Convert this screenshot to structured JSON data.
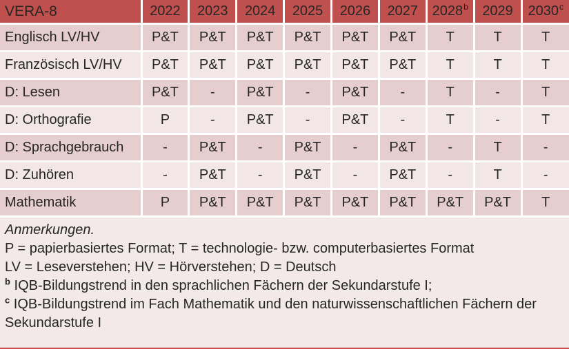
{
  "colors": {
    "header_bg": "#C0504D",
    "header_text": "#FFFFFF",
    "band_dark": "#E5CECD",
    "band_light": "#F2E7E6",
    "notes_bg": "#F2E9E8",
    "cell_text": "#262626",
    "accent_text": "#A0433E",
    "separator": "#FFFFFF"
  },
  "table": {
    "corner_label": "VERA-8",
    "years": [
      {
        "label": "2022",
        "sup": ""
      },
      {
        "label": "2023",
        "sup": ""
      },
      {
        "label": "2024",
        "sup": ""
      },
      {
        "label": "2025",
        "sup": ""
      },
      {
        "label": "2026",
        "sup": ""
      },
      {
        "label": "2027",
        "sup": ""
      },
      {
        "label": "2028",
        "sup": "b"
      },
      {
        "label": "2029",
        "sup": ""
      },
      {
        "label": "2030",
        "sup": "c"
      }
    ],
    "rows": [
      {
        "label": "Englisch LV/HV",
        "band": "dark",
        "cells": [
          {
            "text": "P&T",
            "red": false
          },
          {
            "text": "P&T",
            "red": false
          },
          {
            "text": "P&T",
            "red": false
          },
          {
            "text": "P&T",
            "red": false
          },
          {
            "text": "P&T",
            "red": false
          },
          {
            "text": "P&T",
            "red": false
          },
          {
            "text": "T",
            "red": true
          },
          {
            "text": "T",
            "red": true
          },
          {
            "text": "T",
            "red": true
          }
        ]
      },
      {
        "label": "Französisch LV/HV",
        "band": "light",
        "cells": [
          {
            "text": "P&T",
            "red": false
          },
          {
            "text": "P&T",
            "red": false
          },
          {
            "text": "P&T",
            "red": false
          },
          {
            "text": "P&T",
            "red": false
          },
          {
            "text": "P&T",
            "red": false
          },
          {
            "text": "P&T",
            "red": false
          },
          {
            "text": "T",
            "red": true
          },
          {
            "text": "T",
            "red": true
          },
          {
            "text": "T",
            "red": true
          }
        ]
      },
      {
        "label": "D: Lesen",
        "band": "dark",
        "cells": [
          {
            "text": "P&T",
            "red": false
          },
          {
            "text": "-",
            "red": false
          },
          {
            "text": "P&T",
            "red": false
          },
          {
            "text": "-",
            "red": false
          },
          {
            "text": "P&T",
            "red": false
          },
          {
            "text": "-",
            "red": false
          },
          {
            "text": "T",
            "red": true
          },
          {
            "text": "-",
            "red": true
          },
          {
            "text": "T",
            "red": true
          }
        ]
      },
      {
        "label": "D: Orthografie",
        "band": "light",
        "cells": [
          {
            "text": "P",
            "red": false
          },
          {
            "text": "-",
            "red": false
          },
          {
            "text": "P&T",
            "red": false
          },
          {
            "text": "-",
            "red": false
          },
          {
            "text": "P&T",
            "red": false
          },
          {
            "text": "-",
            "red": false
          },
          {
            "text": "T",
            "red": true
          },
          {
            "text": "-",
            "red": true
          },
          {
            "text": "T",
            "red": true
          }
        ]
      },
      {
        "label": "D: Sprachgebrauch",
        "band": "dark",
        "cells": [
          {
            "text": "-",
            "red": false
          },
          {
            "text": "P&T",
            "red": false
          },
          {
            "text": "-",
            "red": false
          },
          {
            "text": "P&T",
            "red": false
          },
          {
            "text": "-",
            "red": false
          },
          {
            "text": "P&T",
            "red": false
          },
          {
            "text": "-",
            "red": true
          },
          {
            "text": "T",
            "red": true
          },
          {
            "text": "-",
            "red": true
          }
        ]
      },
      {
        "label": "D: Zuhören",
        "band": "light",
        "cells": [
          {
            "text": "-",
            "red": false
          },
          {
            "text": "P&T",
            "red": false
          },
          {
            "text": "-",
            "red": false
          },
          {
            "text": "P&T",
            "red": false
          },
          {
            "text": "-",
            "red": false
          },
          {
            "text": "P&T",
            "red": false
          },
          {
            "text": "-",
            "red": true
          },
          {
            "text": "T",
            "red": true
          },
          {
            "text": "-",
            "red": true
          }
        ]
      },
      {
        "label": "Mathematik",
        "band": "dark",
        "cells": [
          {
            "text": "P",
            "red": false
          },
          {
            "text": "P&T",
            "red": false
          },
          {
            "text": "P&T",
            "red": false
          },
          {
            "text": "P&T",
            "red": false
          },
          {
            "text": "P&T",
            "red": false
          },
          {
            "text": "P&T",
            "red": false
          },
          {
            "text": "P&T",
            "red": false
          },
          {
            "text": "P&T",
            "red": false
          },
          {
            "text": "T",
            "red": true
          }
        ]
      }
    ]
  },
  "notes": {
    "lines": [
      {
        "italic": true,
        "sup": "",
        "text": "Anmerkungen."
      },
      {
        "italic": false,
        "sup": "",
        "text": "P = papierbasiertes Format; T = technologie- bzw. computerbasiertes Format"
      },
      {
        "italic": false,
        "sup": "",
        "text": "LV = Leseverstehen; HV = Hörverstehen; D = Deutsch"
      },
      {
        "italic": false,
        "sup": "b",
        "text": "IQB-Bildungstrend in den sprachlichen Fächern der Sekundarstufe I;"
      },
      {
        "italic": false,
        "sup": "c",
        "text": "IQB-Bildungstrend im Fach Mathematik und den naturwissenschaftlichen Fächern der Sekundarstufe I"
      }
    ]
  }
}
